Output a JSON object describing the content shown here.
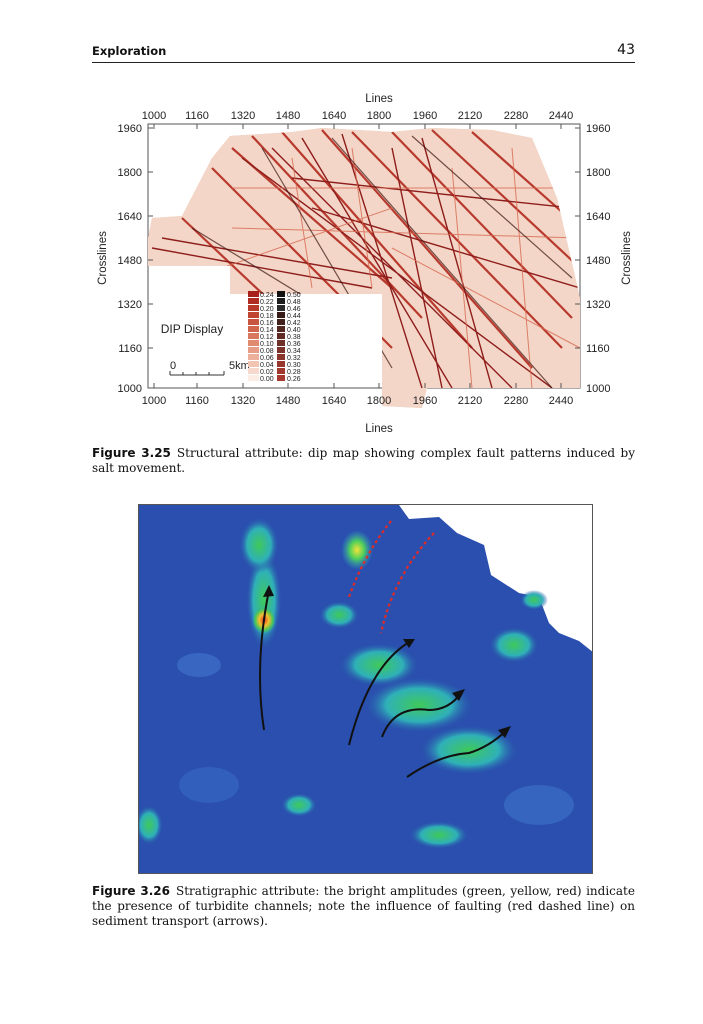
{
  "header": {
    "section": "Exploration",
    "page_number": "43"
  },
  "figure1": {
    "top_axis_title": "Lines",
    "bottom_axis_title": "Lines",
    "left_axis_title": "Crosslines",
    "right_axis_title": "Crosslines",
    "x_ticks": [
      "1000",
      "1160",
      "1320",
      "1480",
      "1640",
      "1800",
      "1960",
      "2120",
      "2280",
      "2440"
    ],
    "y_ticks": [
      "1960",
      "1800",
      "1640",
      "1480",
      "1320",
      "1160",
      "1000"
    ],
    "display_label": "DIP Display",
    "scale_start": "0",
    "scale_end": "5km",
    "legend_left": [
      "0.24",
      "0.22",
      "0.20",
      "0.18",
      "0.16",
      "0.14",
      "0.12",
      "0.10",
      "0.08",
      "0.06",
      "0.04",
      "0.02",
      "0.00"
    ],
    "legend_right": [
      "0.50",
      "0.48",
      "0.46",
      "0.44",
      "0.42",
      "0.40",
      "0.38",
      "0.36",
      "0.34",
      "0.32",
      "0.30",
      "0.28",
      "0.26"
    ],
    "caption_label": "Figure 3.25",
    "caption_text": "Structural attribute: dip map showing complex fault patterns induced by salt movement."
  },
  "figure2": {
    "caption_label": "Figure 3.26",
    "caption_text": "Stratigraphic attribute: the bright amplitudes (green, yellow, red) indicate the presence of turbidite channels; note the influence of faulting (red dashed line) on sediment transport (arrows)."
  },
  "colors": {
    "fault_red": "#c0392b",
    "amplitude_blue": "#2a4fae",
    "amplitude_green": "#36c45a"
  }
}
